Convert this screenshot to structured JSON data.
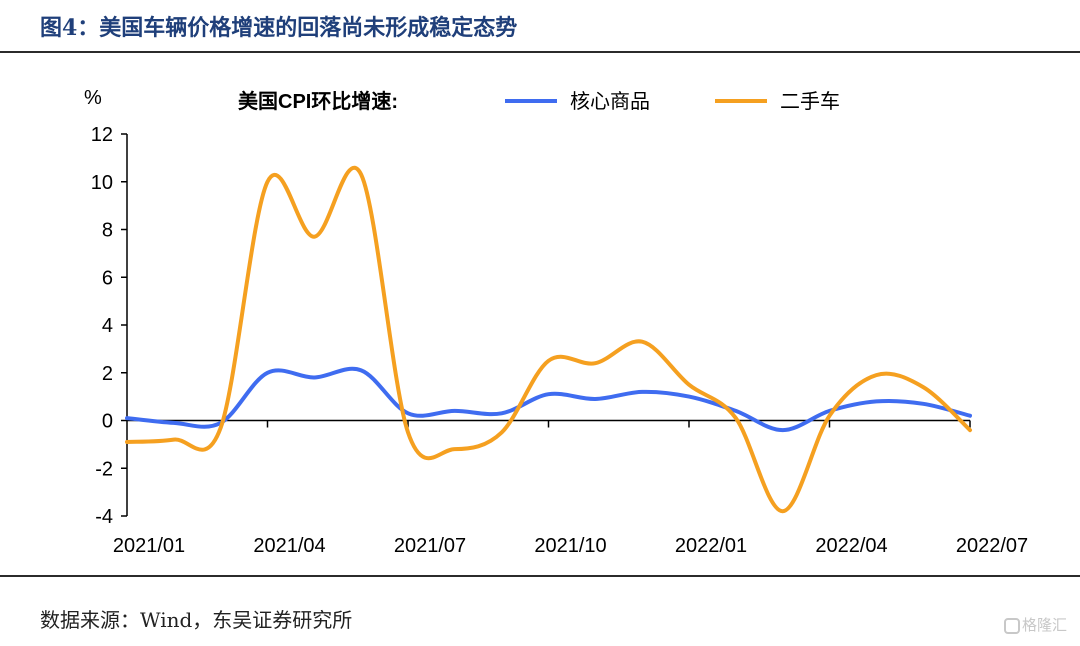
{
  "title": "图4：美国车辆价格增速的回落尚未形成稳定态势",
  "source": "数据来源：Wind，东吴证券研究所",
  "watermark": "格隆汇",
  "chart_data": {
    "type": "line",
    "ylabel": "%",
    "legend_title": "美国CPI环比增速:",
    "legend_position": "top",
    "ylim": [
      -4,
      12
    ],
    "yticks": [
      -4,
      -2,
      0,
      2,
      4,
      6,
      8,
      10,
      12
    ],
    "xticks": [
      "2021/01",
      "2021/04",
      "2021/07",
      "2021/10",
      "2022/01",
      "2022/04",
      "2022/07"
    ],
    "x": [
      "2021/01",
      "2021/02",
      "2021/03",
      "2021/04",
      "2021/05",
      "2021/06",
      "2021/07",
      "2021/08",
      "2021/09",
      "2021/10",
      "2021/11",
      "2021/12",
      "2022/01",
      "2022/02",
      "2022/03",
      "2022/04",
      "2022/05",
      "2022/06",
      "2022/07"
    ],
    "grid": false,
    "series": [
      {
        "name": "核心商品",
        "color": "#3f6cf0",
        "values": [
          0.1,
          -0.1,
          -0.1,
          2.0,
          1.8,
          2.1,
          0.3,
          0.4,
          0.3,
          1.1,
          0.9,
          1.2,
          1.0,
          0.4,
          -0.4,
          0.4,
          0.8,
          0.7,
          0.2
        ]
      },
      {
        "name": "二手车",
        "color": "#f5a020",
        "values": [
          -0.9,
          -0.8,
          -0.3,
          10.0,
          7.7,
          10.3,
          -0.5,
          -1.2,
          -0.5,
          2.5,
          2.4,
          3.3,
          1.5,
          0.1,
          -3.8,
          0.2,
          1.9,
          1.4,
          -0.4
        ]
      }
    ]
  }
}
